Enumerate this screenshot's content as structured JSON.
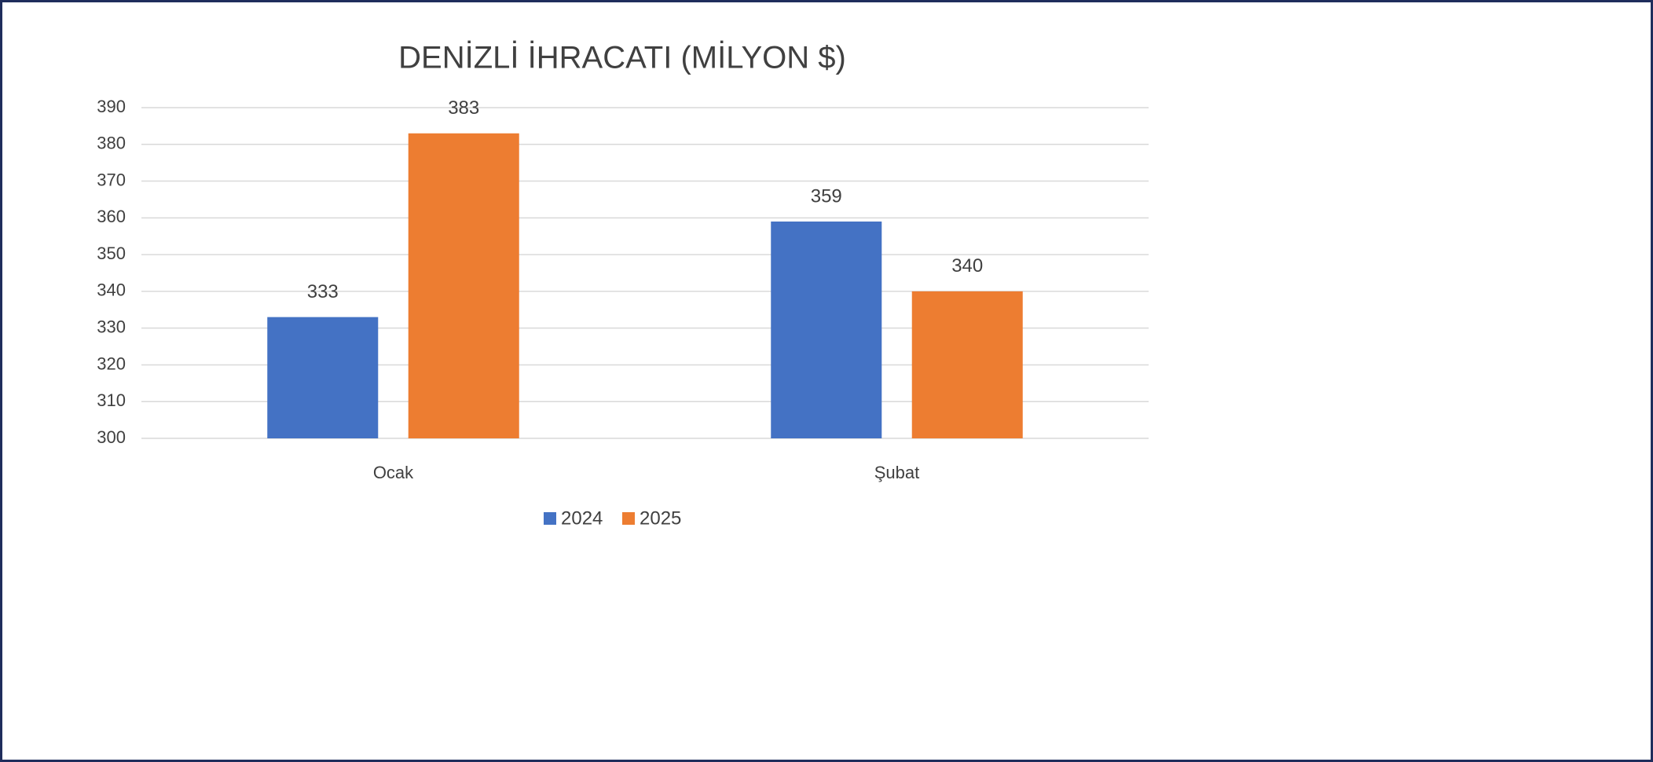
{
  "chart_data": {
    "type": "bar",
    "title": "DENİZLİ İHRACATI (MİLYON $)",
    "categories": [
      "Ocak",
      "Şubat"
    ],
    "series": [
      {
        "name": "2024",
        "color": "#4472c4",
        "values": [
          333,
          359
        ]
      },
      {
        "name": "2025",
        "color": "#ed7d31",
        "values": [
          383,
          340
        ]
      }
    ],
    "ylim": [
      300,
      390
    ],
    "yticks": [
      300,
      310,
      320,
      330,
      340,
      350,
      360,
      370,
      380,
      390
    ],
    "grid": true,
    "legend": "bottom"
  }
}
